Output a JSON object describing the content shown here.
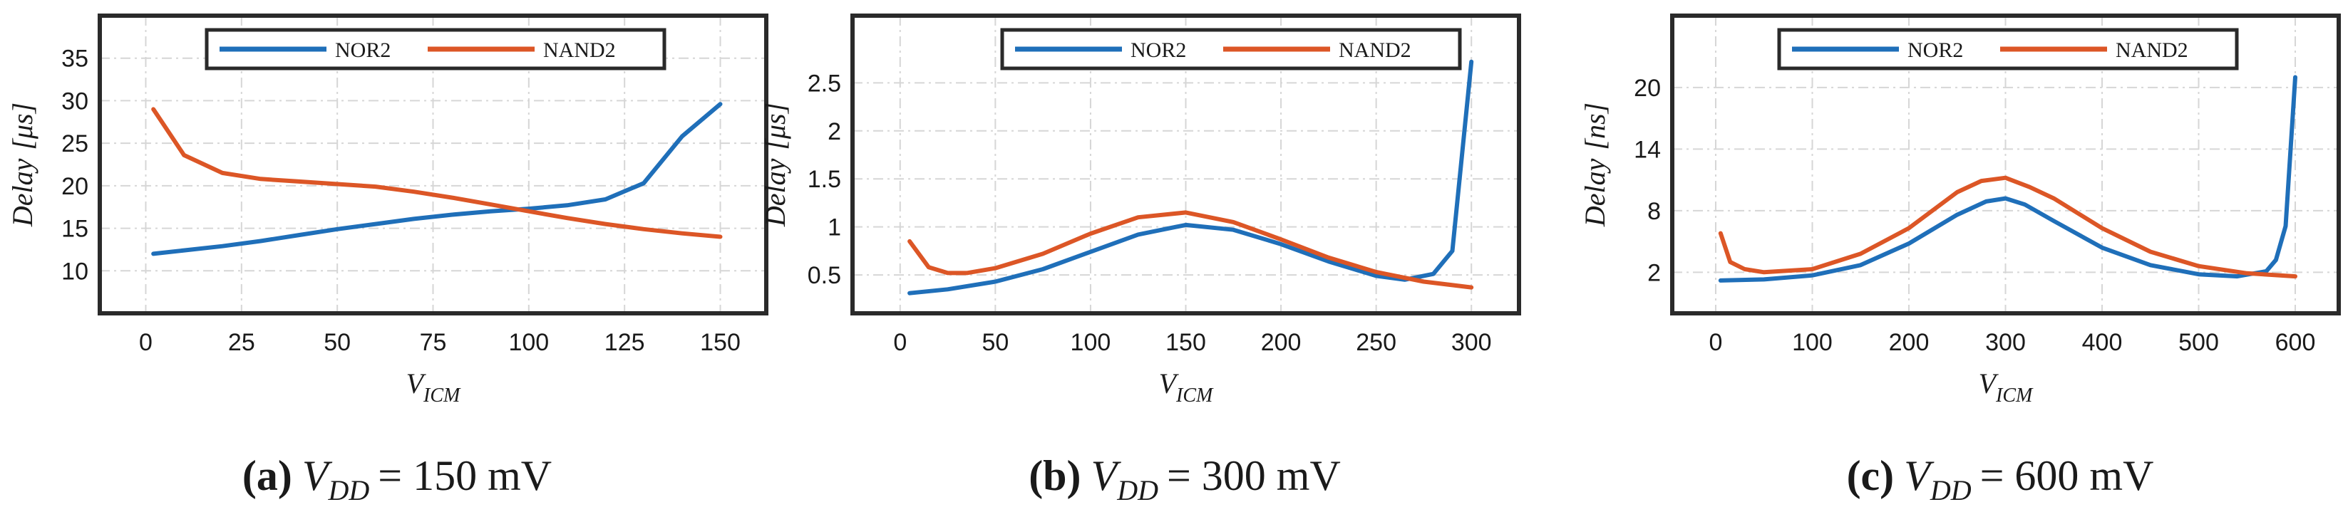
{
  "figure": {
    "colors": {
      "nor2": "#1f6fb9",
      "nand2": "#dc5626",
      "axis": "#2a2a2a",
      "grid": "#d6d6d6"
    },
    "panels": [
      {
        "type": "line",
        "caption": {
          "letter": "(a)",
          "label": "V",
          "sub": "DD",
          "value": "= 150 mV"
        },
        "ylabel": {
          "text": "Delay",
          "unit": "[μs]"
        },
        "xlabel": {
          "main": "V",
          "sub": "ICM"
        },
        "xlim": [
          -12,
          162
        ],
        "ylim": [
          5,
          40
        ],
        "xticks": [
          0,
          25,
          50,
          75,
          100,
          125,
          150
        ],
        "xticklabels": [
          "0",
          "25",
          "50",
          "75",
          "100",
          "125",
          "150"
        ],
        "yticks": [
          10,
          15,
          20,
          25,
          30,
          35
        ],
        "yticklabels": [
          "10",
          "15",
          "20",
          "25",
          "30",
          "35"
        ],
        "series": [
          {
            "name": "NOR2",
            "x": [
              2,
              10,
              20,
              30,
              40,
              50,
              60,
              70,
              80,
              90,
              100,
              110,
              120,
              130,
              140,
              150
            ],
            "y": [
              12.0,
              12.4,
              12.9,
              13.5,
              14.2,
              14.9,
              15.5,
              16.1,
              16.6,
              17.0,
              17.3,
              17.7,
              18.4,
              20.3,
              25.8,
              29.6
            ]
          },
          {
            "name": "NAND2",
            "x": [
              2,
              10,
              20,
              30,
              40,
              50,
              60,
              70,
              80,
              90,
              100,
              110,
              120,
              130,
              140,
              150
            ],
            "y": [
              29.0,
              23.6,
              21.5,
              20.8,
              20.5,
              20.2,
              19.9,
              19.3,
              18.6,
              17.8,
              17.0,
              16.2,
              15.5,
              14.9,
              14.4,
              14.0
            ]
          }
        ]
      },
      {
        "type": "line",
        "caption": {
          "letter": "(b)",
          "label": "V",
          "sub": "DD",
          "value": "= 300 mV"
        },
        "ylabel": {
          "text": "Delay",
          "unit": "[μs]"
        },
        "xlabel": {
          "main": "V",
          "sub": "ICM"
        },
        "xlim": [
          -25,
          325
        ],
        "ylim": [
          0.1,
          3.2
        ],
        "xticks": [
          0,
          50,
          100,
          150,
          200,
          250,
          300
        ],
        "xticklabels": [
          "0",
          "50",
          "100",
          "150",
          "200",
          "250",
          "300"
        ],
        "yticks": [
          0.5,
          1,
          1.5,
          2,
          2.5
        ],
        "yticklabels": [
          "0.5",
          "1",
          "1.5",
          "2",
          "2.5"
        ],
        "series": [
          {
            "name": "NOR2",
            "x": [
              5,
              25,
              50,
              75,
              100,
              125,
              150,
              175,
              200,
              225,
              250,
              265,
              280,
              290,
              300
            ],
            "y": [
              0.31,
              0.35,
              0.43,
              0.56,
              0.74,
              0.92,
              1.02,
              0.97,
              0.82,
              0.64,
              0.49,
              0.45,
              0.51,
              0.75,
              2.72
            ]
          },
          {
            "name": "NAND2",
            "x": [
              5,
              15,
              25,
              35,
              50,
              75,
              100,
              125,
              150,
              175,
              200,
              225,
              250,
              275,
              300
            ],
            "y": [
              0.85,
              0.58,
              0.52,
              0.52,
              0.57,
              0.72,
              0.93,
              1.1,
              1.15,
              1.05,
              0.87,
              0.68,
              0.53,
              0.43,
              0.37
            ]
          }
        ]
      },
      {
        "type": "line",
        "caption": {
          "letter": "(c)",
          "label": "V",
          "sub": "DD",
          "value": "= 600 mV"
        },
        "ylabel": {
          "text": "Delay",
          "unit": "[ns]"
        },
        "xlabel": {
          "main": "V",
          "sub": "ICM"
        },
        "xlim": [
          -45,
          645
        ],
        "ylim": [
          -2,
          27
        ],
        "xticks": [
          0,
          100,
          200,
          300,
          400,
          500,
          600
        ],
        "xticklabels": [
          "0",
          "100",
          "200",
          "300",
          "400",
          "500",
          "600"
        ],
        "yticks": [
          2,
          8,
          14,
          20
        ],
        "yticklabels": [
          "2",
          "8",
          "14",
          "20"
        ],
        "series": [
          {
            "name": "NOR2",
            "x": [
              5,
              50,
              100,
              150,
              200,
              250,
              280,
              300,
              320,
              350,
              400,
              450,
              500,
              540,
              570,
              580,
              590,
              600
            ],
            "y": [
              1.2,
              1.3,
              1.7,
              2.7,
              4.8,
              7.6,
              8.9,
              9.2,
              8.6,
              7.0,
              4.4,
              2.7,
              1.8,
              1.6,
              2.1,
              3.2,
              6.5,
              21.0
            ]
          },
          {
            "name": "NAND2",
            "x": [
              5,
              15,
              30,
              50,
              100,
              150,
              200,
              250,
              275,
              300,
              325,
              350,
              400,
              450,
              500,
              550,
              600
            ],
            "y": [
              5.8,
              3.0,
              2.3,
              2.0,
              2.3,
              3.8,
              6.3,
              9.8,
              10.9,
              11.2,
              10.3,
              9.2,
              6.3,
              4.0,
              2.6,
              1.9,
              1.6
            ]
          }
        ]
      }
    ]
  }
}
